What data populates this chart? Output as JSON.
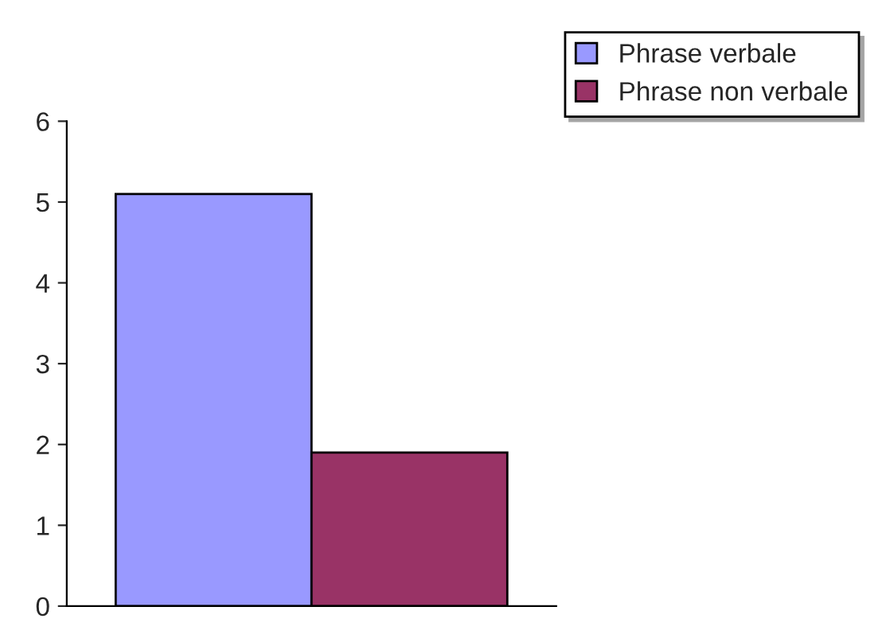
{
  "chart_data": {
    "type": "bar",
    "categories": [
      null
    ],
    "series": [
      {
        "name": "Phrase verbale",
        "color": "#9999ff",
        "values": [
          5.1
        ]
      },
      {
        "name": "Phrase non verbale",
        "color": "#993366",
        "values": [
          1.9
        ]
      }
    ],
    "ylim": [
      0,
      6
    ],
    "yticks": [
      0,
      1,
      2,
      3,
      4,
      5,
      6
    ],
    "grid": false,
    "legend": "top right",
    "tick_labels": "y"
  }
}
